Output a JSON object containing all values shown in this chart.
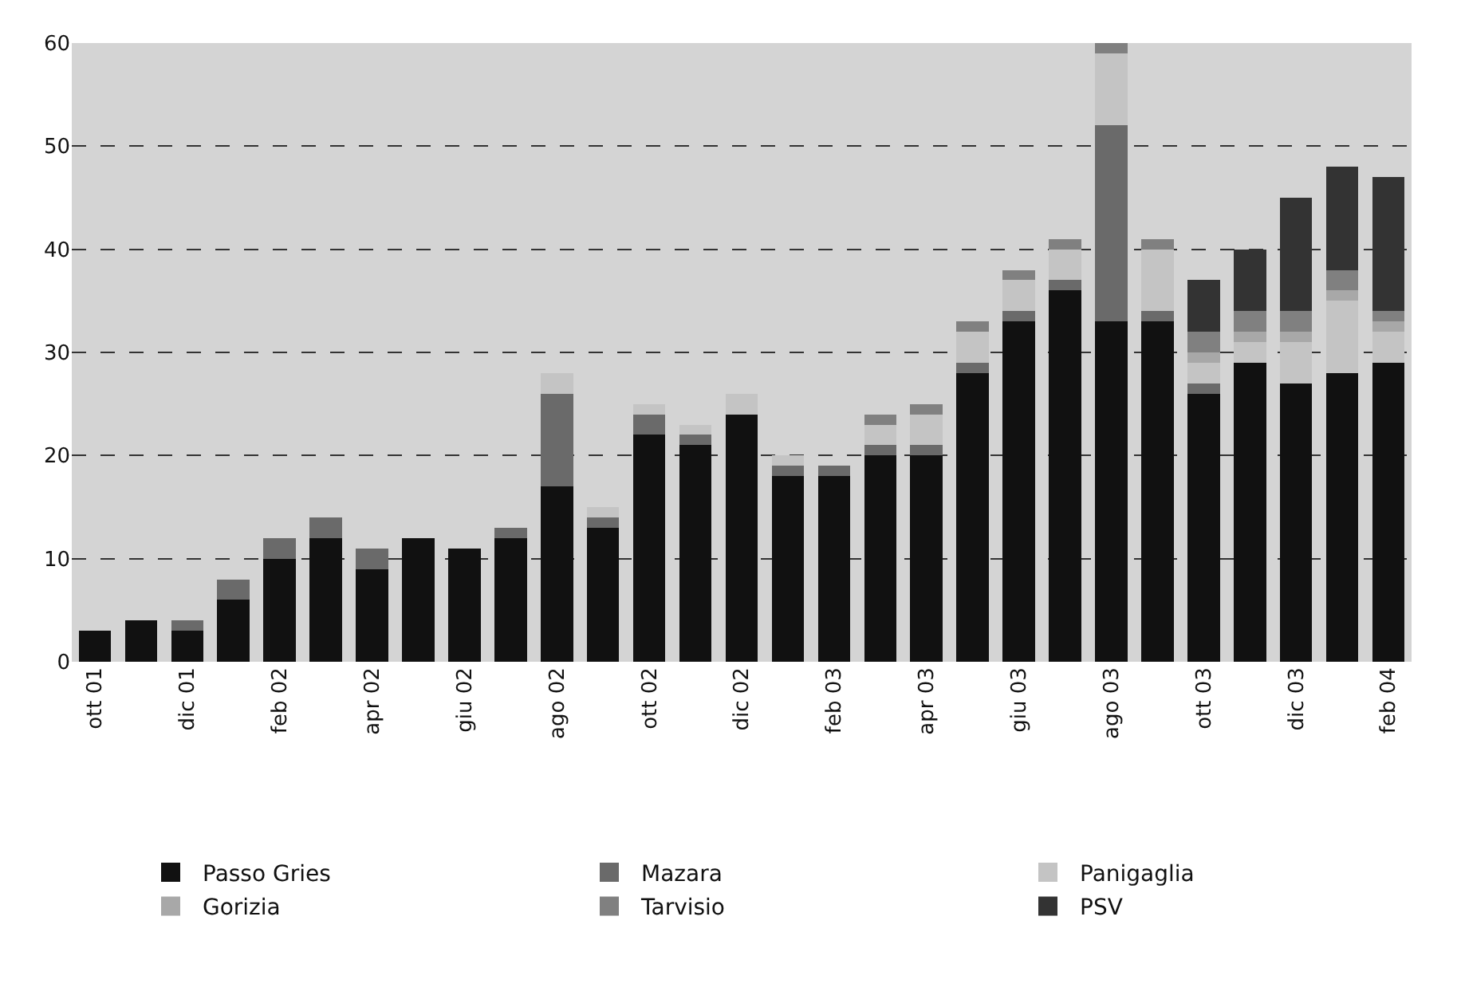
{
  "chart_data": {
    "type": "bar",
    "stacked": true,
    "categories": [
      "ott 01",
      null,
      "dic 01",
      null,
      "feb 02",
      null,
      "apr 02",
      null,
      "giu 02",
      null,
      "ago 02",
      null,
      "ott 02",
      null,
      "dic 02",
      null,
      "feb 03",
      null,
      "apr 03",
      null,
      "giu 03",
      null,
      "ago 03",
      null,
      "ott 03",
      null,
      "dic 03",
      null,
      "feb 04"
    ],
    "series": [
      {
        "name": "Passo Gries",
        "color": "#111111",
        "values": [
          3,
          4,
          3,
          6,
          10,
          12,
          9,
          12,
          11,
          12,
          17,
          13,
          22,
          21,
          24,
          18,
          18,
          20,
          20,
          28,
          33,
          36,
          33,
          33,
          26,
          29,
          27,
          28,
          29
        ]
      },
      {
        "name": "Mazara",
        "color": "#6a6a6a",
        "values": [
          0,
          0,
          1,
          2,
          2,
          2,
          2,
          0,
          0,
          1,
          9,
          1,
          2,
          1,
          0,
          1,
          1,
          1,
          1,
          1,
          1,
          1,
          19,
          1,
          1,
          0,
          0,
          0,
          0
        ]
      },
      {
        "name": "Panigaglia",
        "color": "#c4c4c4",
        "values": [
          0,
          0,
          0,
          0,
          0,
          0,
          0,
          0,
          0,
          0,
          2,
          1,
          1,
          1,
          2,
          1,
          0,
          2,
          3,
          3,
          3,
          3,
          7,
          6,
          2,
          2,
          4,
          7,
          3
        ]
      },
      {
        "name": "Gorizia",
        "color": "#a8a8a8",
        "values": [
          0,
          0,
          0,
          0,
          0,
          0,
          0,
          0,
          0,
          0,
          0,
          0,
          0,
          0,
          0,
          0,
          0,
          0,
          0,
          0,
          0,
          0,
          0,
          0,
          1,
          1,
          1,
          1,
          1
        ]
      },
      {
        "name": "Tarvisio",
        "color": "#808080",
        "values": [
          0,
          0,
          0,
          0,
          0,
          0,
          0,
          0,
          0,
          0,
          0,
          0,
          0,
          0,
          0,
          0,
          0,
          1,
          1,
          1,
          1,
          1,
          1,
          1,
          2,
          2,
          2,
          2,
          1
        ]
      },
      {
        "name": "PSV",
        "color": "#333333",
        "values": [
          0,
          0,
          0,
          0,
          0,
          0,
          0,
          0,
          0,
          0,
          0,
          0,
          0,
          0,
          0,
          0,
          0,
          0,
          0,
          0,
          0,
          0,
          0,
          0,
          5,
          6,
          11,
          10,
          13
        ]
      }
    ],
    "ylim": [
      0,
      60
    ],
    "yticks": [
      0,
      10,
      20,
      30,
      40,
      50,
      60
    ],
    "grid": "y",
    "line_style": "dashed",
    "legend": "bottom"
  }
}
